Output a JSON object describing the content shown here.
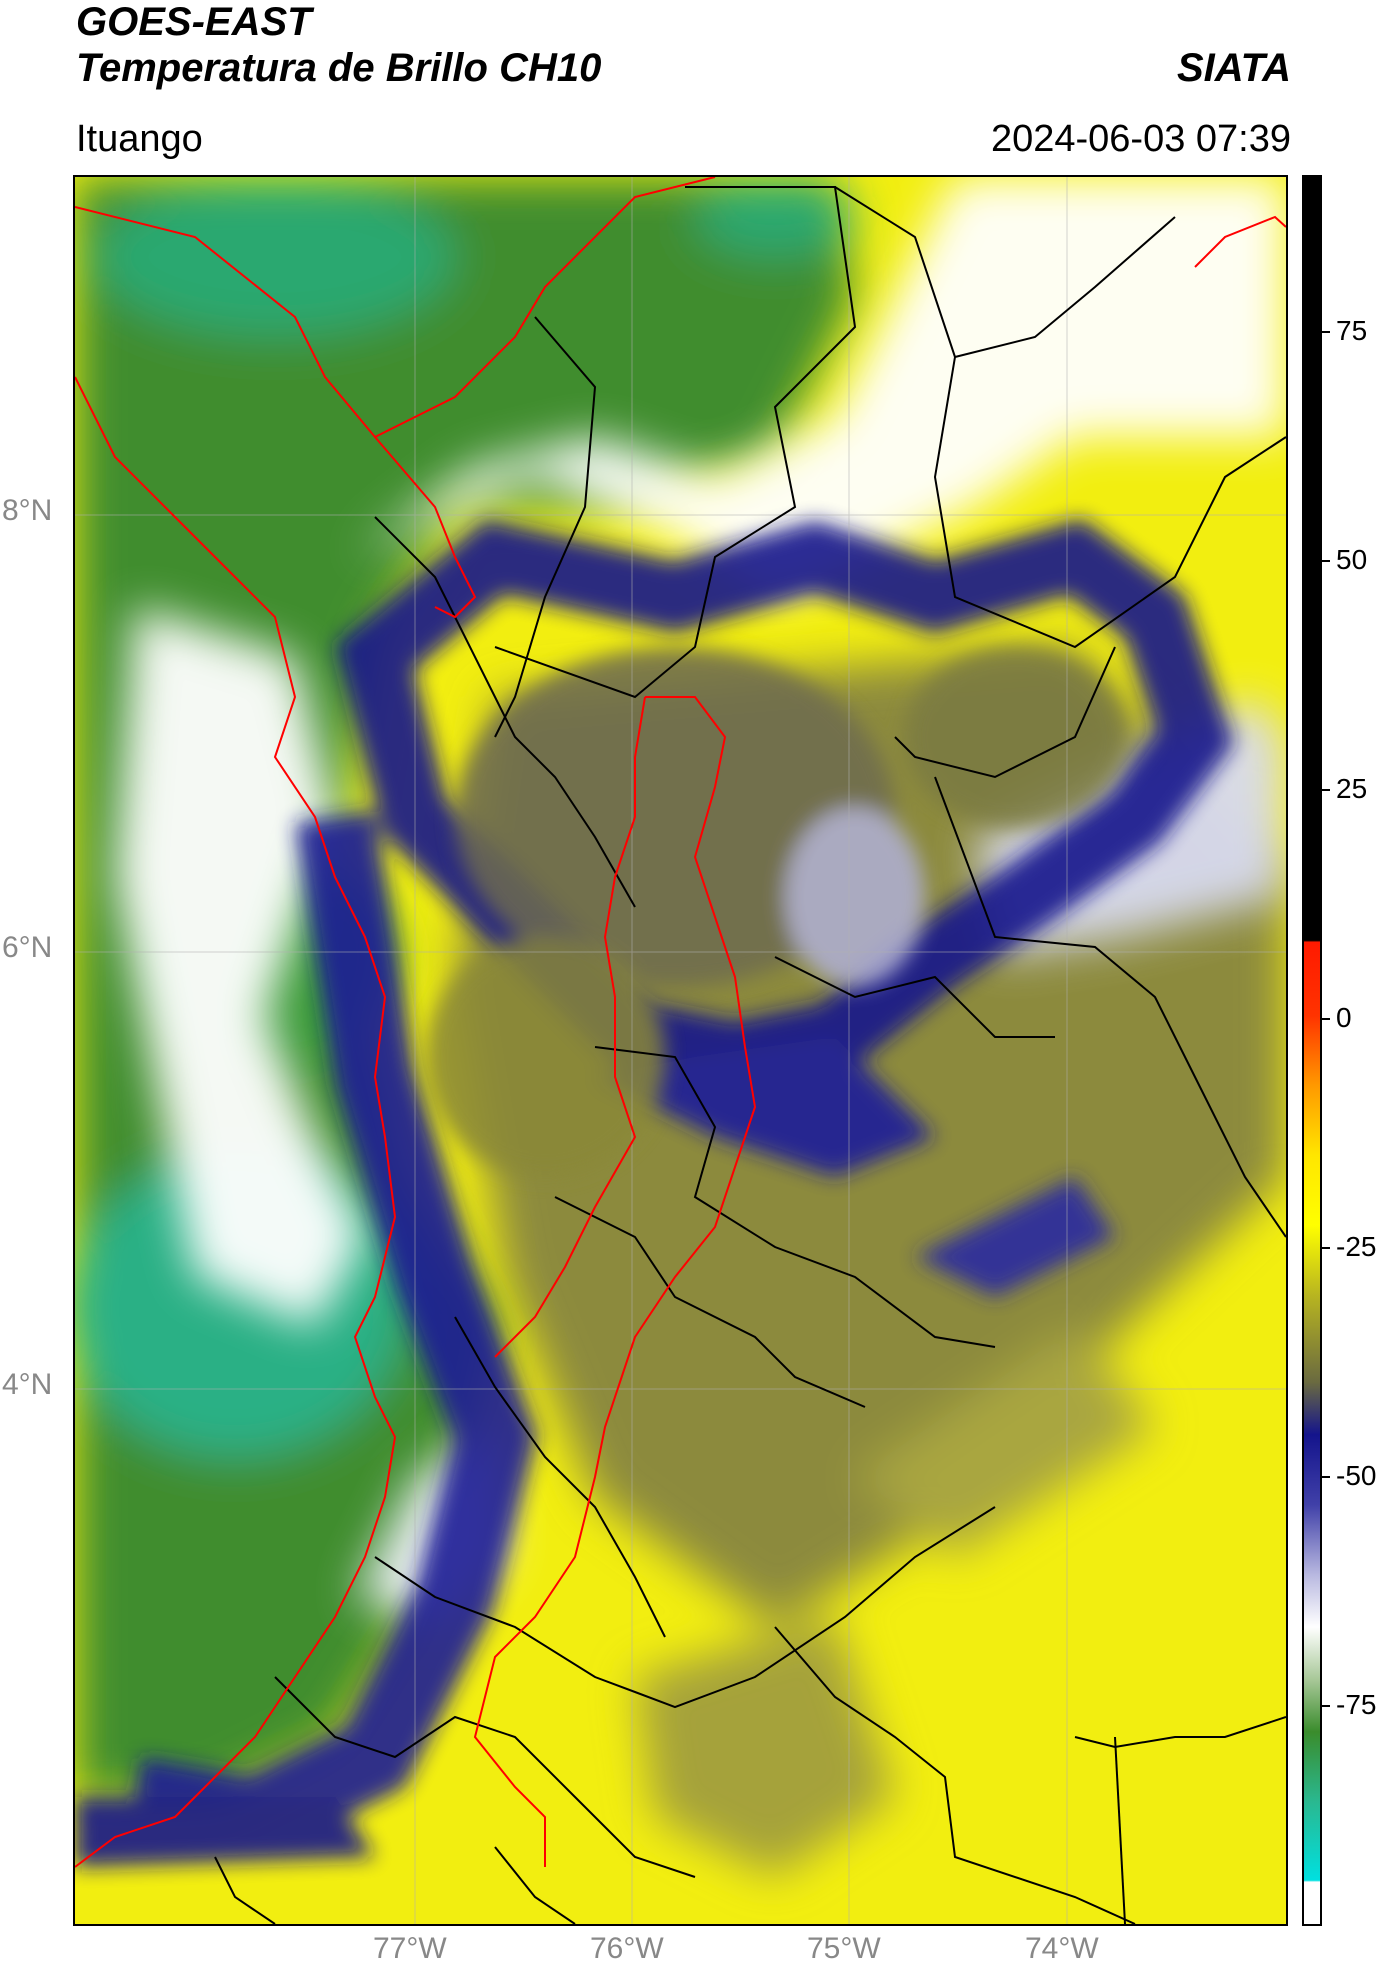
{
  "header": {
    "satellite": "GOES-EAST",
    "product": "Temperatura de Brillo CH10",
    "brand": "SIATA",
    "location": "Ituango",
    "timestamp": "2024-06-03 07:39"
  },
  "map": {
    "lat_ticks": [
      "8°N",
      "6°N",
      "4°N"
    ],
    "lon_ticks": [
      "77°W",
      "76°W",
      "75°W",
      "74°W"
    ]
  },
  "colorbar": {
    "ticks": [
      "75",
      "50",
      "25",
      "0",
      "-25",
      "-50",
      "-75"
    ],
    "range": [
      -92,
      92
    ],
    "colors": {
      "black": "#000000",
      "red": "#ff1a00",
      "orange": "#ff9900",
      "yellow": "#ffff00",
      "olive": "#8c8a3c",
      "navy": "#14148c",
      "lavender": "#b8b8e0",
      "white": "#ffffff",
      "green": "#3a8c2c",
      "teal": "#2ab890",
      "cyan": "#00e0e0"
    }
  },
  "boundaries": {
    "coast_color": "#ff0000",
    "admin_color": "#000000"
  }
}
